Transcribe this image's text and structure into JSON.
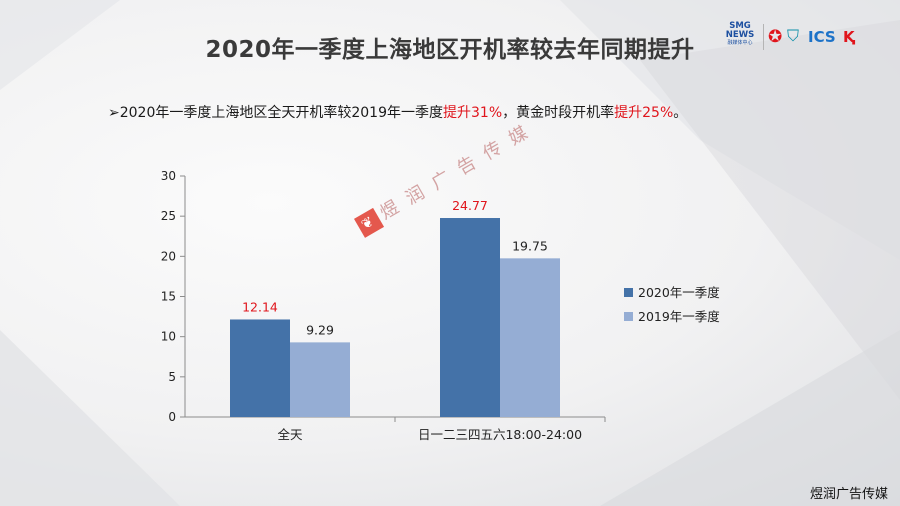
{
  "slide": {
    "title": "2020年一季度上海地区开机率较去年同期提升",
    "subtitle": {
      "bullet": "➢",
      "text1": "2020年一季度上海地区全天开机率较2019年一季度",
      "highlight1": "提升31%",
      "text2": "，黄金时段开机率",
      "highlight2": "提升25%",
      "text3": "。"
    },
    "logos": {
      "smg_line1": "SMG",
      "smg_line2": "NEWS",
      "smg_line3": "融媒体中心",
      "star_icon": "star-icon",
      "shield_icon": "shield-icon",
      "ics": "ICS",
      "k_icon": "k-logo-icon"
    },
    "watermark": "煜 润 广 告 传 媒",
    "footer": "煜润广告传媒"
  },
  "colors": {
    "series_2020": "#4472a8",
    "series_2019": "#95add4",
    "highlight": "#e0151c"
  },
  "chart_data": {
    "type": "bar",
    "categories": [
      "全天",
      "日一二三四五六18:00-24:00"
    ],
    "series": [
      {
        "name": "2020年一季度",
        "values": [
          12.14,
          24.77
        ]
      },
      {
        "name": "2019年一季度",
        "values": [
          9.29,
          19.75
        ]
      }
    ],
    "ylim": [
      0,
      30
    ],
    "yticks": [
      0,
      5,
      10,
      15,
      20,
      25,
      30
    ],
    "legend": "right",
    "grid": false,
    "label_colors": [
      "#e0151c",
      "#222222"
    ]
  }
}
